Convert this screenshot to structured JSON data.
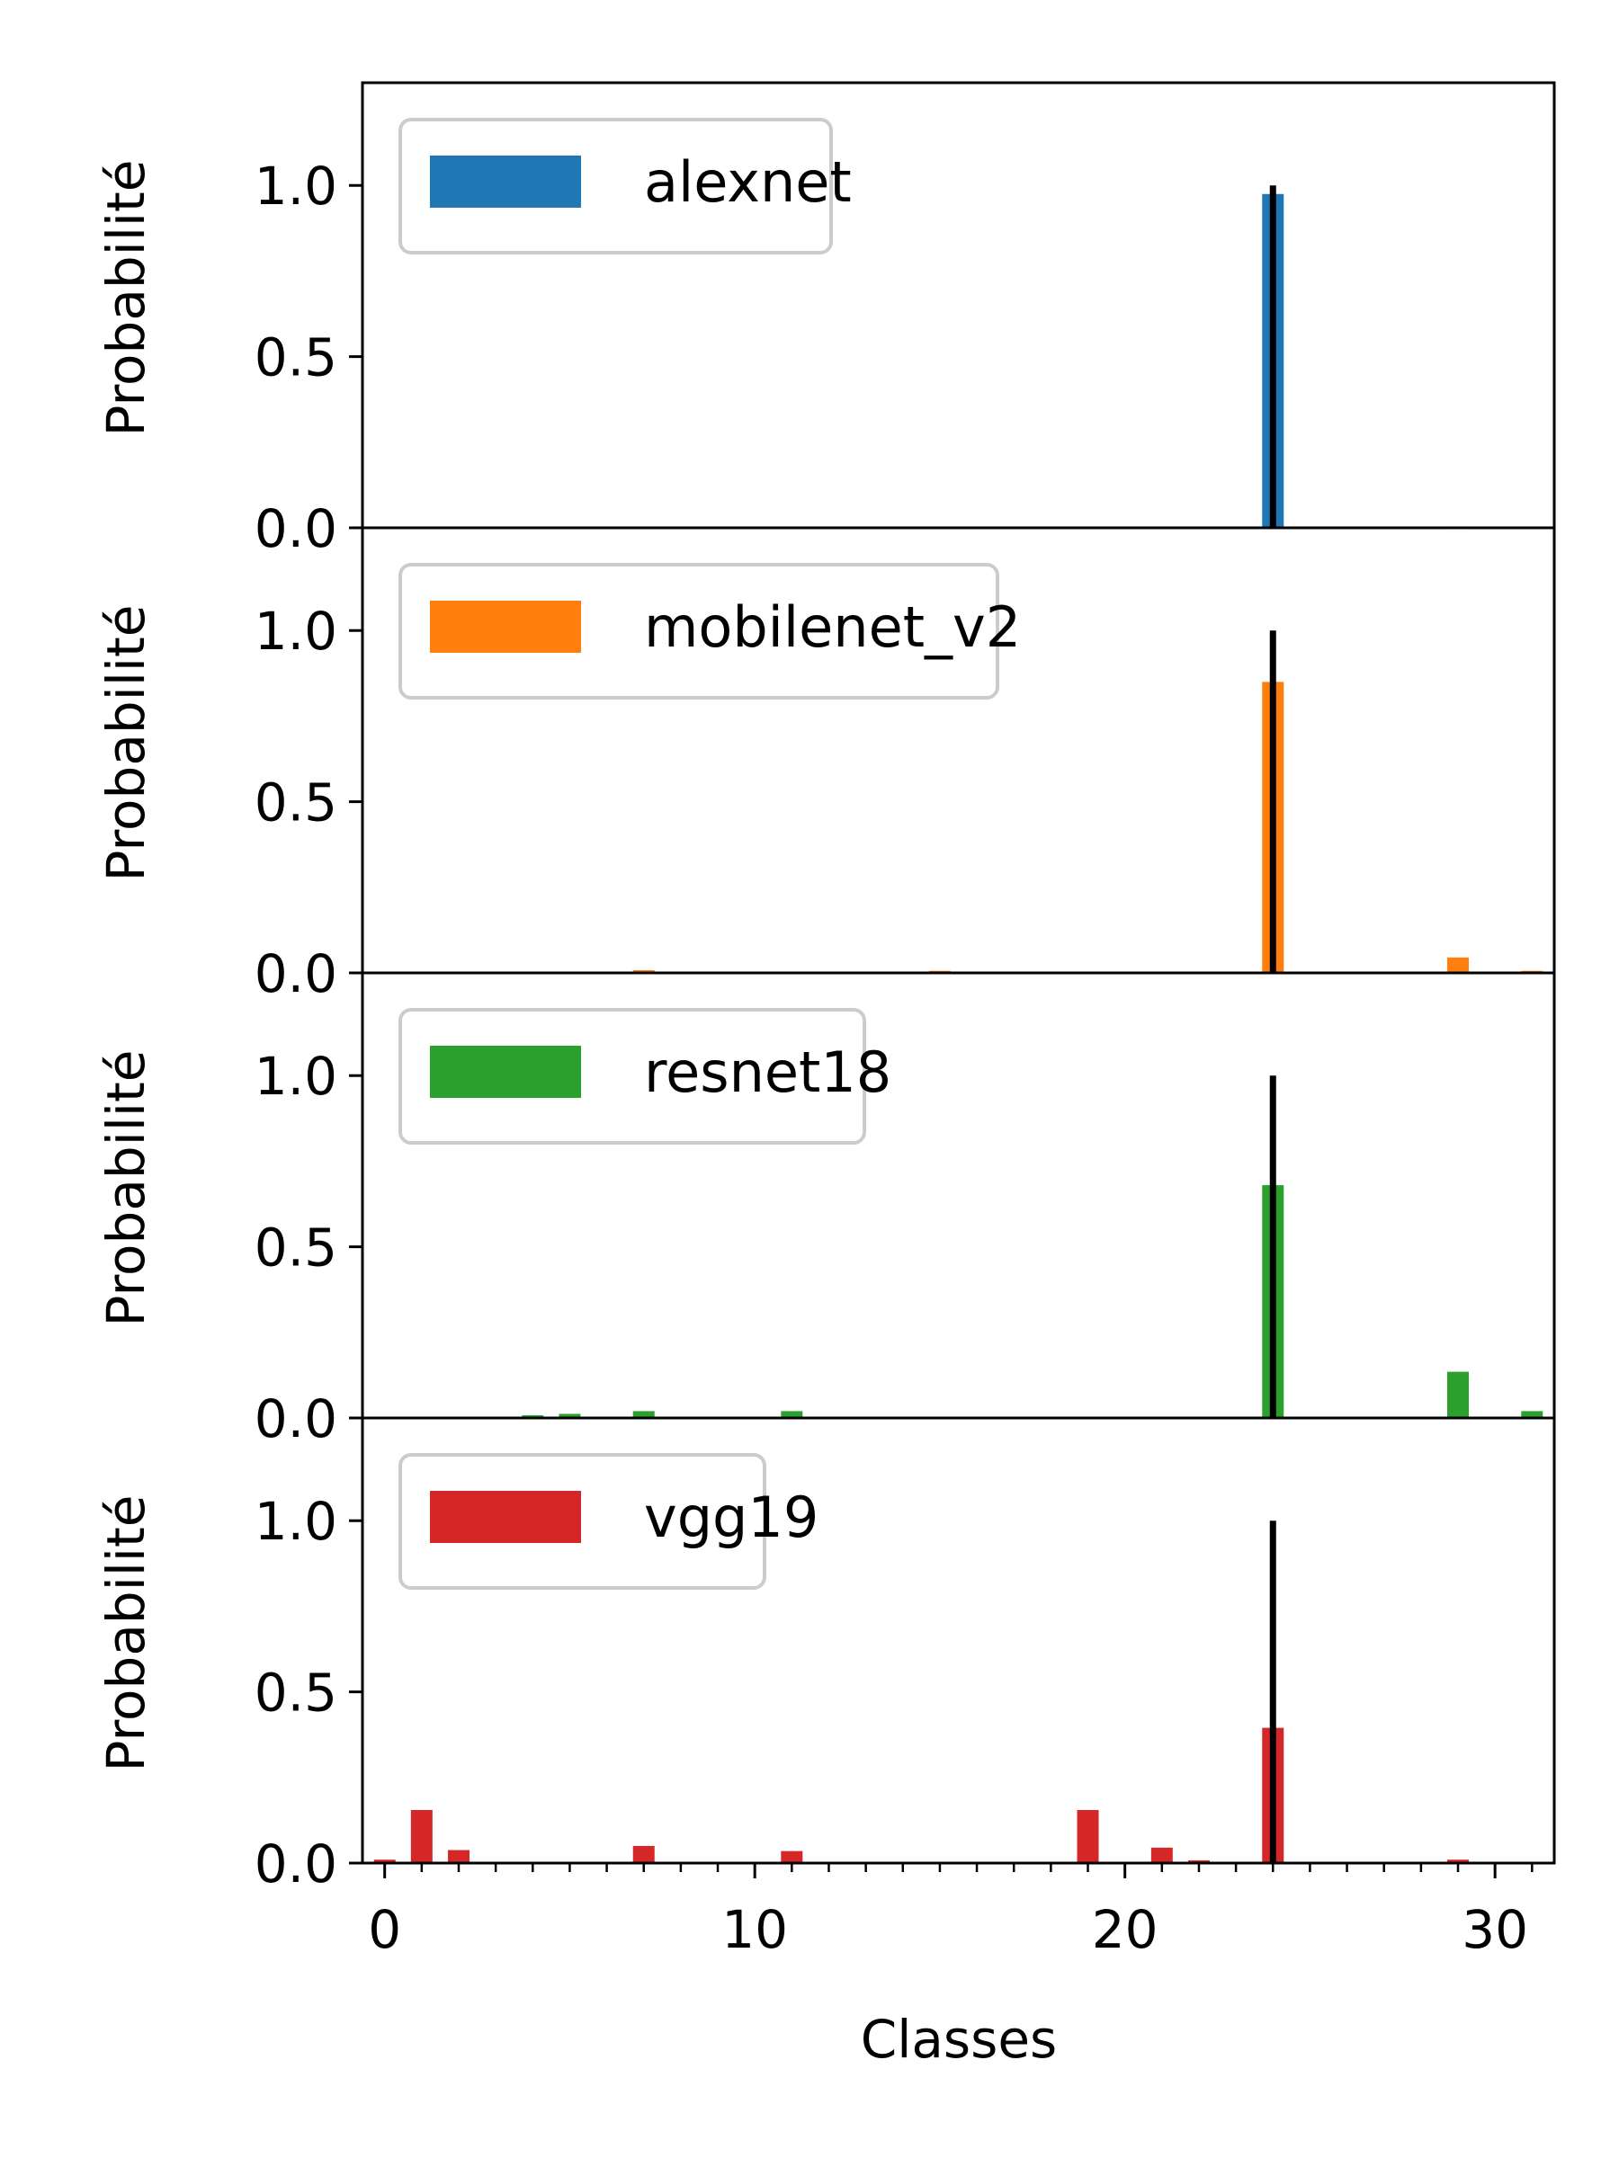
{
  "chart_data": {
    "type": "bar",
    "xlabel": "Classes",
    "ylabel": "Probabilité",
    "xlim": [
      -0.6,
      31.6
    ],
    "ylim": [
      0,
      1.3
    ],
    "xticks": [
      0,
      10,
      20,
      30
    ],
    "yticks": [
      0.0,
      0.5,
      1.0
    ],
    "ytick_labels": [
      "0.0",
      "0.5",
      "1.0"
    ],
    "true_class": 24,
    "true_class_value": 1.0,
    "legend_position": "upper left",
    "panels": [
      {
        "name": "alexnet",
        "color": "#1f77b4",
        "values": [
          0,
          0,
          0,
          0,
          0,
          0,
          0,
          0,
          0,
          0,
          0,
          0,
          0,
          0,
          0,
          0,
          0,
          0,
          0,
          0,
          0,
          0,
          0,
          0,
          0.975,
          0,
          0,
          0,
          0,
          0.004,
          0,
          0
        ]
      },
      {
        "name": "mobilenet_v2",
        "color": "#ff7f0e",
        "values": [
          0,
          0,
          0,
          0,
          0,
          0,
          0,
          0.008,
          0,
          0,
          0,
          0,
          0,
          0,
          0,
          0.006,
          0,
          0,
          0,
          0,
          0,
          0,
          0,
          0,
          0.85,
          0,
          0,
          0,
          0,
          0.045,
          0,
          0.006
        ]
      },
      {
        "name": "resnet18",
        "color": "#2ca02c",
        "values": [
          0,
          0,
          0,
          0,
          0.008,
          0.012,
          0,
          0.02,
          0,
          0,
          0,
          0.02,
          0,
          0,
          0,
          0,
          0,
          0,
          0,
          0,
          0,
          0,
          0,
          0,
          0.68,
          0,
          0,
          0,
          0,
          0.135,
          0,
          0.02
        ]
      },
      {
        "name": "vgg19",
        "color": "#d62728",
        "values": [
          0.01,
          0.155,
          0.038,
          0,
          0,
          0,
          0,
          0.05,
          0,
          0,
          0,
          0.035,
          0,
          0,
          0,
          0,
          0,
          0,
          0,
          0.155,
          0,
          0.045,
          0.008,
          0,
          0.395,
          0,
          0,
          0,
          0,
          0.01,
          0,
          0
        ]
      }
    ]
  }
}
